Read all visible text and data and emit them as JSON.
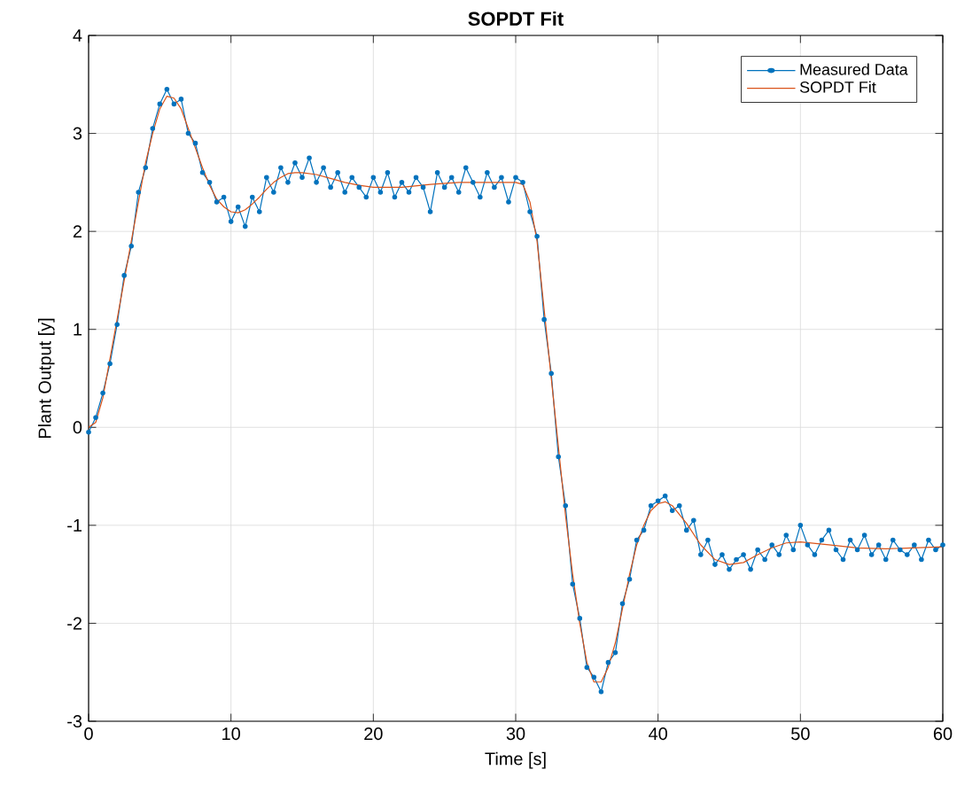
{
  "chart_data": {
    "type": "line",
    "title": "SOPDT Fit",
    "xlabel": "Time [s]",
    "ylabel": "Plant Output [y]",
    "xlim": [
      0,
      60
    ],
    "ylim": [
      -3,
      4
    ],
    "xticks": [
      0,
      10,
      20,
      30,
      40,
      50,
      60
    ],
    "yticks": [
      -3,
      -2,
      -1,
      0,
      1,
      2,
      3,
      4
    ],
    "grid": true,
    "legend": "top right",
    "line_style": "solid",
    "series": [
      {
        "name": "Measured Data",
        "color": "#0072bd",
        "marker": "circle",
        "x": [
          0,
          0.5,
          1,
          1.5,
          2,
          2.5,
          3,
          3.5,
          4,
          4.5,
          5,
          5.5,
          6,
          6.5,
          7,
          7.5,
          8,
          8.5,
          9,
          9.5,
          10,
          10.5,
          11,
          11.5,
          12,
          12.5,
          13,
          13.5,
          14,
          14.5,
          15,
          15.5,
          16,
          16.5,
          17,
          17.5,
          18,
          18.5,
          19,
          19.5,
          20,
          20.5,
          21,
          21.5,
          22,
          22.5,
          23,
          23.5,
          24,
          24.5,
          25,
          25.5,
          26,
          26.5,
          27,
          27.5,
          28,
          28.5,
          29,
          29.5,
          30,
          30.5,
          31,
          31.5,
          32,
          32.5,
          33,
          33.5,
          34,
          34.5,
          35,
          35.5,
          36,
          36.5,
          37,
          37.5,
          38,
          38.5,
          39,
          39.5,
          40,
          40.5,
          41,
          41.5,
          42,
          42.5,
          43,
          43.5,
          44,
          44.5,
          45,
          45.5,
          46,
          46.5,
          47,
          47.5,
          48,
          48.5,
          49,
          49.5,
          50,
          50.5,
          51,
          51.5,
          52,
          52.5,
          53,
          53.5,
          54,
          54.5,
          55,
          55.5,
          56,
          56.5,
          57,
          57.5,
          58,
          58.5,
          59,
          59.5,
          60
        ],
        "values": [
          -0.05,
          0.1,
          0.35,
          0.65,
          1.05,
          1.55,
          1.85,
          2.4,
          2.65,
          3.05,
          3.3,
          3.45,
          3.3,
          3.35,
          3.0,
          2.9,
          2.6,
          2.5,
          2.3,
          2.35,
          2.1,
          2.25,
          2.05,
          2.35,
          2.2,
          2.55,
          2.4,
          2.65,
          2.5,
          2.7,
          2.55,
          2.75,
          2.5,
          2.65,
          2.45,
          2.6,
          2.4,
          2.55,
          2.45,
          2.35,
          2.55,
          2.4,
          2.6,
          2.35,
          2.5,
          2.4,
          2.55,
          2.45,
          2.2,
          2.6,
          2.45,
          2.55,
          2.4,
          2.65,
          2.5,
          2.35,
          2.6,
          2.45,
          2.55,
          2.3,
          2.55,
          2.5,
          2.2,
          1.95,
          1.1,
          0.55,
          -0.3,
          -0.8,
          -1.6,
          -1.95,
          -2.45,
          -2.55,
          -2.7,
          -2.4,
          -2.3,
          -1.8,
          -1.55,
          -1.15,
          -1.05,
          -0.8,
          -0.75,
          -0.7,
          -0.85,
          -0.8,
          -1.05,
          -0.95,
          -1.3,
          -1.15,
          -1.4,
          -1.3,
          -1.45,
          -1.35,
          -1.3,
          -1.45,
          -1.25,
          -1.35,
          -1.2,
          -1.3,
          -1.1,
          -1.25,
          -1.0,
          -1.2,
          -1.3,
          -1.15,
          -1.05,
          -1.25,
          -1.35,
          -1.15,
          -1.25,
          -1.1,
          -1.3,
          -1.2,
          -1.35,
          -1.15,
          -1.25,
          -1.3,
          -1.2,
          -1.35,
          -1.15,
          -1.25,
          -1.2
        ]
      },
      {
        "name": "SOPDT Fit",
        "color": "#d95319",
        "marker": "none",
        "x": [
          0,
          0.5,
          1,
          1.5,
          2,
          2.5,
          3,
          3.5,
          4,
          4.5,
          5,
          5.5,
          6,
          6.5,
          7,
          7.5,
          8,
          8.5,
          9,
          9.5,
          10,
          10.5,
          11,
          11.5,
          12,
          12.5,
          13,
          13.5,
          14,
          14.5,
          15,
          16,
          17,
          18,
          19,
          20,
          22,
          24,
          26,
          28,
          30,
          30.5,
          31,
          31.5,
          32,
          32.5,
          33,
          33.5,
          34,
          34.5,
          35,
          35.5,
          36,
          36.5,
          37,
          37.5,
          38,
          38.5,
          39,
          39.5,
          40,
          40.5,
          41,
          42,
          43,
          44,
          45,
          46,
          47,
          48,
          49,
          50,
          52,
          54,
          56,
          58,
          60
        ],
        "values": [
          0,
          0.05,
          0.3,
          0.7,
          1.1,
          1.5,
          1.9,
          2.3,
          2.7,
          3.0,
          3.25,
          3.38,
          3.36,
          3.25,
          3.05,
          2.85,
          2.65,
          2.47,
          2.33,
          2.25,
          2.2,
          2.19,
          2.22,
          2.28,
          2.35,
          2.43,
          2.5,
          2.55,
          2.59,
          2.6,
          2.6,
          2.58,
          2.54,
          2.5,
          2.47,
          2.45,
          2.45,
          2.48,
          2.5,
          2.5,
          2.5,
          2.48,
          2.3,
          1.9,
          1.2,
          0.5,
          -0.2,
          -0.9,
          -1.5,
          -2.0,
          -2.4,
          -2.6,
          -2.6,
          -2.45,
          -2.2,
          -1.85,
          -1.5,
          -1.2,
          -1.0,
          -0.85,
          -0.78,
          -0.76,
          -0.8,
          -0.98,
          -1.2,
          -1.35,
          -1.4,
          -1.38,
          -1.3,
          -1.23,
          -1.18,
          -1.17,
          -1.2,
          -1.23,
          -1.24,
          -1.23,
          -1.22
        ]
      }
    ]
  }
}
